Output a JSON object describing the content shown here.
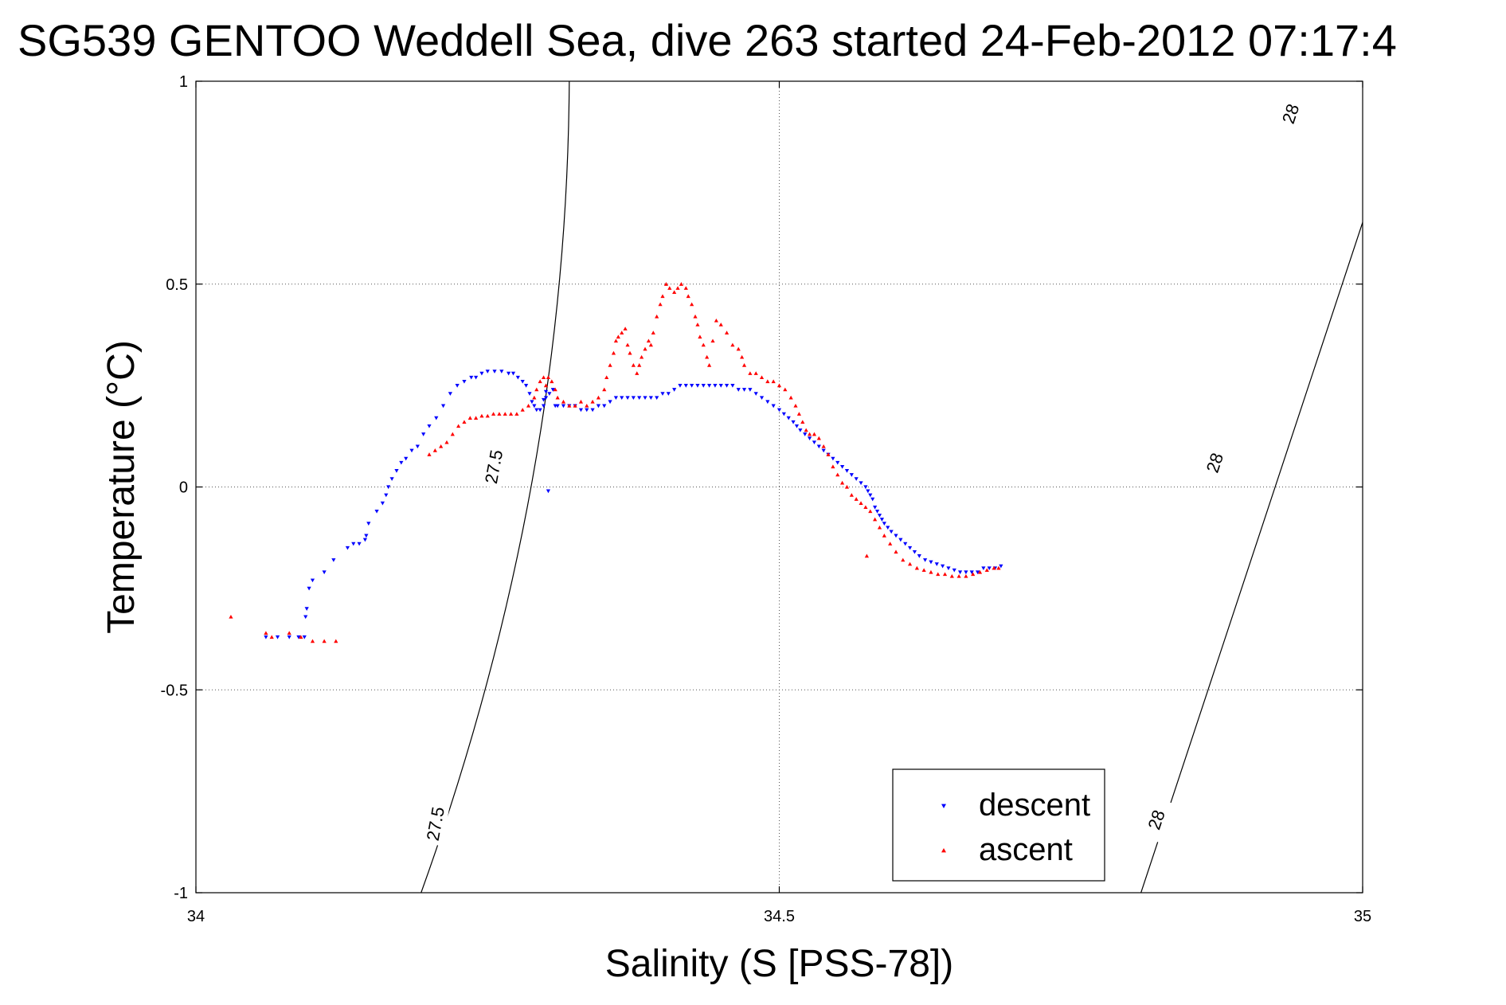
{
  "chart_data": {
    "type": "scatter",
    "title": "SG539 GENTOO Weddell Sea, dive 263 started 24-Feb-2012 07:17:4",
    "xlabel": "Salinity (S [PSS-78])",
    "ylabel": "Temperature (°C)",
    "xlim": [
      34,
      35
    ],
    "ylim": [
      -1,
      1
    ],
    "xticks": [
      34,
      34.5,
      35
    ],
    "xtick_labels": [
      "34",
      "34.5",
      "35"
    ],
    "yticks": [
      -1,
      -0.5,
      0,
      0.5,
      1
    ],
    "ytick_labels": [
      "-1",
      "-0.5",
      "0",
      "0.5",
      "1"
    ],
    "grid": true,
    "legend": "bottom-right",
    "contours": [
      {
        "level": "27.5",
        "points": [
          [
            34.193,
            -1.0
          ],
          [
            34.318,
            0.0
          ],
          [
            34.32,
            1.0
          ]
        ],
        "labels": [
          {
            "text": "27.5",
            "s": 34.205,
            "t": -0.83
          },
          {
            "text": "27.5",
            "s": 34.255,
            "t": 0.05
          }
        ]
      },
      {
        "level": "28",
        "points": [
          [
            34.81,
            -1.0
          ],
          [
            34.925,
            0.0
          ],
          [
            35.04,
            1.0
          ]
        ],
        "labels": [
          {
            "text": "28",
            "s": 34.823,
            "t": -0.82
          },
          {
            "text": "28",
            "s": 34.873,
            "t": 0.06
          },
          {
            "text": "28",
            "s": 34.938,
            "t": 0.92
          }
        ]
      }
    ],
    "series": [
      {
        "name": "descent",
        "color": "#0000ff",
        "marker": "triangle-down",
        "points": [
          [
            34.06,
            -0.37
          ],
          [
            34.07,
            -0.37
          ],
          [
            34.08,
            -0.37
          ],
          [
            34.088,
            -0.37
          ],
          [
            34.093,
            -0.37
          ],
          [
            34.094,
            -0.32
          ],
          [
            34.095,
            -0.3
          ],
          [
            34.097,
            -0.25
          ],
          [
            34.1,
            -0.23
          ],
          [
            34.11,
            -0.21
          ],
          [
            34.118,
            -0.18
          ],
          [
            34.13,
            -0.15
          ],
          [
            34.135,
            -0.14
          ],
          [
            34.14,
            -0.14
          ],
          [
            34.145,
            -0.13
          ],
          [
            34.146,
            -0.12
          ],
          [
            34.148,
            -0.09
          ],
          [
            34.155,
            -0.06
          ],
          [
            34.16,
            -0.04
          ],
          [
            34.163,
            -0.02
          ],
          [
            34.165,
            0.0
          ],
          [
            34.168,
            0.02
          ],
          [
            34.172,
            0.04
          ],
          [
            34.176,
            0.06
          ],
          [
            34.18,
            0.07
          ],
          [
            34.185,
            0.09
          ],
          [
            34.19,
            0.1
          ],
          [
            34.195,
            0.13
          ],
          [
            34.2,
            0.15
          ],
          [
            34.206,
            0.17
          ],
          [
            34.212,
            0.2
          ],
          [
            34.218,
            0.23
          ],
          [
            34.224,
            0.25
          ],
          [
            34.23,
            0.26
          ],
          [
            34.236,
            0.27
          ],
          [
            34.24,
            0.27
          ],
          [
            34.245,
            0.28
          ],
          [
            34.25,
            0.285
          ],
          [
            34.256,
            0.285
          ],
          [
            34.262,
            0.285
          ],
          [
            34.268,
            0.28
          ],
          [
            34.272,
            0.28
          ],
          [
            34.276,
            0.27
          ],
          [
            34.28,
            0.26
          ],
          [
            34.283,
            0.25
          ],
          [
            34.286,
            0.23
          ],
          [
            34.288,
            0.21
          ],
          [
            34.29,
            0.2
          ],
          [
            34.292,
            0.19
          ],
          [
            34.295,
            0.19
          ],
          [
            34.298,
            0.2
          ],
          [
            34.3,
            0.22
          ],
          [
            34.303,
            0.23
          ],
          [
            34.306,
            0.24
          ],
          [
            34.298,
            0.215
          ],
          [
            34.3,
            0.235
          ],
          [
            34.308,
            0.2
          ],
          [
            34.31,
            0.2
          ],
          [
            34.315,
            0.2
          ],
          [
            34.32,
            0.2
          ],
          [
            34.325,
            0.2
          ],
          [
            34.33,
            0.19
          ],
          [
            34.335,
            0.19
          ],
          [
            34.34,
            0.19
          ],
          [
            34.345,
            0.2
          ],
          [
            34.35,
            0.2
          ],
          [
            34.355,
            0.21
          ],
          [
            34.36,
            0.22
          ],
          [
            34.365,
            0.22
          ],
          [
            34.37,
            0.22
          ],
          [
            34.375,
            0.22
          ],
          [
            34.38,
            0.22
          ],
          [
            34.385,
            0.22
          ],
          [
            34.39,
            0.22
          ],
          [
            34.395,
            0.22
          ],
          [
            34.4,
            0.23
          ],
          [
            34.405,
            0.23
          ],
          [
            34.41,
            0.24
          ],
          [
            34.415,
            0.25
          ],
          [
            34.42,
            0.25
          ],
          [
            34.425,
            0.25
          ],
          [
            34.43,
            0.25
          ],
          [
            34.435,
            0.25
          ],
          [
            34.44,
            0.25
          ],
          [
            34.445,
            0.25
          ],
          [
            34.45,
            0.25
          ],
          [
            34.455,
            0.25
          ],
          [
            34.46,
            0.25
          ],
          [
            34.465,
            0.24
          ],
          [
            34.47,
            0.24
          ],
          [
            34.475,
            0.24
          ],
          [
            34.48,
            0.23
          ],
          [
            34.485,
            0.22
          ],
          [
            34.49,
            0.21
          ],
          [
            34.495,
            0.2
          ],
          [
            34.5,
            0.19
          ],
          [
            34.504,
            0.18
          ],
          [
            34.508,
            0.17
          ],
          [
            34.512,
            0.16
          ],
          [
            34.515,
            0.15
          ],
          [
            34.518,
            0.14
          ],
          [
            34.522,
            0.13
          ],
          [
            34.526,
            0.12
          ],
          [
            34.53,
            0.11
          ],
          [
            34.534,
            0.1
          ],
          [
            34.538,
            0.09
          ],
          [
            34.542,
            0.08
          ],
          [
            34.546,
            0.07
          ],
          [
            34.55,
            0.06
          ],
          [
            34.554,
            0.05
          ],
          [
            34.558,
            0.04
          ],
          [
            34.562,
            0.03
          ],
          [
            34.566,
            0.02
          ],
          [
            34.57,
            0.01
          ],
          [
            34.574,
            0.0
          ],
          [
            34.576,
            -0.01
          ],
          [
            34.578,
            -0.02
          ],
          [
            34.58,
            -0.03
          ],
          [
            34.582,
            -0.05
          ],
          [
            34.584,
            -0.06
          ],
          [
            34.586,
            -0.07
          ],
          [
            34.588,
            -0.08
          ],
          [
            34.59,
            -0.09
          ],
          [
            34.593,
            -0.1
          ],
          [
            34.596,
            -0.11
          ],
          [
            34.6,
            -0.12
          ],
          [
            34.604,
            -0.13
          ],
          [
            34.608,
            -0.14
          ],
          [
            34.612,
            -0.15
          ],
          [
            34.616,
            -0.16
          ],
          [
            34.62,
            -0.17
          ],
          [
            34.625,
            -0.18
          ],
          [
            34.63,
            -0.185
          ],
          [
            34.635,
            -0.19
          ],
          [
            34.64,
            -0.195
          ],
          [
            34.645,
            -0.2
          ],
          [
            34.65,
            -0.205
          ],
          [
            34.655,
            -0.21
          ],
          [
            34.66,
            -0.21
          ],
          [
            34.665,
            -0.21
          ],
          [
            34.67,
            -0.21
          ],
          [
            34.675,
            -0.2
          ],
          [
            34.68,
            -0.2
          ],
          [
            34.685,
            -0.2
          ],
          [
            34.69,
            -0.195
          ],
          [
            34.302,
            -0.01
          ]
        ]
      },
      {
        "name": "ascent",
        "color": "#ff0000",
        "marker": "triangle-up",
        "points": [
          [
            34.03,
            -0.32
          ],
          [
            34.06,
            -0.36
          ],
          [
            34.065,
            -0.37
          ],
          [
            34.08,
            -0.36
          ],
          [
            34.09,
            -0.37
          ],
          [
            34.1,
            -0.38
          ],
          [
            34.11,
            -0.38
          ],
          [
            34.12,
            -0.38
          ],
          [
            34.2,
            0.08
          ],
          [
            34.205,
            0.09
          ],
          [
            34.21,
            0.1
          ],
          [
            34.215,
            0.11
          ],
          [
            34.22,
            0.13
          ],
          [
            34.225,
            0.15
          ],
          [
            34.23,
            0.16
          ],
          [
            34.235,
            0.17
          ],
          [
            34.24,
            0.17
          ],
          [
            34.245,
            0.175
          ],
          [
            34.25,
            0.175
          ],
          [
            34.255,
            0.18
          ],
          [
            34.26,
            0.18
          ],
          [
            34.265,
            0.18
          ],
          [
            34.27,
            0.18
          ],
          [
            34.275,
            0.18
          ],
          [
            34.28,
            0.19
          ],
          [
            34.285,
            0.2
          ],
          [
            34.29,
            0.22
          ],
          [
            34.292,
            0.24
          ],
          [
            34.295,
            0.26
          ],
          [
            34.298,
            0.27
          ],
          [
            34.3,
            0.25
          ],
          [
            34.302,
            0.27
          ],
          [
            34.305,
            0.26
          ],
          [
            34.308,
            0.24
          ],
          [
            34.31,
            0.22
          ],
          [
            34.315,
            0.21
          ],
          [
            34.32,
            0.2
          ],
          [
            34.325,
            0.2
          ],
          [
            34.33,
            0.21
          ],
          [
            34.335,
            0.2
          ],
          [
            34.34,
            0.21
          ],
          [
            34.345,
            0.22
          ],
          [
            34.35,
            0.24
          ],
          [
            34.352,
            0.27
          ],
          [
            34.355,
            0.3
          ],
          [
            34.358,
            0.33
          ],
          [
            34.36,
            0.36
          ],
          [
            34.362,
            0.37
          ],
          [
            34.365,
            0.38
          ],
          [
            34.368,
            0.39
          ],
          [
            34.37,
            0.35
          ],
          [
            34.372,
            0.33
          ],
          [
            34.375,
            0.3
          ],
          [
            34.378,
            0.28
          ],
          [
            34.38,
            0.3
          ],
          [
            34.382,
            0.32
          ],
          [
            34.385,
            0.34
          ],
          [
            34.388,
            0.36
          ],
          [
            34.39,
            0.35
          ],
          [
            34.392,
            0.38
          ],
          [
            34.395,
            0.42
          ],
          [
            34.398,
            0.45
          ],
          [
            34.4,
            0.47
          ],
          [
            34.403,
            0.5
          ],
          [
            34.406,
            0.49
          ],
          [
            34.41,
            0.48
          ],
          [
            34.413,
            0.49
          ],
          [
            34.416,
            0.5
          ],
          [
            34.42,
            0.49
          ],
          [
            34.422,
            0.47
          ],
          [
            34.425,
            0.45
          ],
          [
            34.428,
            0.42
          ],
          [
            34.43,
            0.4
          ],
          [
            34.432,
            0.37
          ],
          [
            34.435,
            0.35
          ],
          [
            34.438,
            0.32
          ],
          [
            34.44,
            0.3
          ],
          [
            34.443,
            0.36
          ],
          [
            34.446,
            0.41
          ],
          [
            34.45,
            0.4
          ],
          [
            34.455,
            0.38
          ],
          [
            34.46,
            0.35
          ],
          [
            34.465,
            0.34
          ],
          [
            34.468,
            0.32
          ],
          [
            34.47,
            0.3
          ],
          [
            34.475,
            0.28
          ],
          [
            34.48,
            0.28
          ],
          [
            34.485,
            0.27
          ],
          [
            34.49,
            0.26
          ],
          [
            34.495,
            0.26
          ],
          [
            34.5,
            0.25
          ],
          [
            34.505,
            0.24
          ],
          [
            34.51,
            0.22
          ],
          [
            34.514,
            0.2
          ],
          [
            34.517,
            0.18
          ],
          [
            34.52,
            0.16
          ],
          [
            34.523,
            0.14
          ],
          [
            34.526,
            0.13
          ],
          [
            34.53,
            0.13
          ],
          [
            34.534,
            0.12
          ],
          [
            34.538,
            0.1
          ],
          [
            34.542,
            0.08
          ],
          [
            34.546,
            0.05
          ],
          [
            34.55,
            0.03
          ],
          [
            34.554,
            0.01
          ],
          [
            34.558,
            0.0
          ],
          [
            34.562,
            -0.02
          ],
          [
            34.566,
            -0.03
          ],
          [
            34.57,
            -0.04
          ],
          [
            34.574,
            -0.05
          ],
          [
            34.578,
            -0.06
          ],
          [
            34.582,
            -0.08
          ],
          [
            34.586,
            -0.1
          ],
          [
            34.59,
            -0.12
          ],
          [
            34.595,
            -0.14
          ],
          [
            34.6,
            -0.16
          ],
          [
            34.606,
            -0.18
          ],
          [
            34.612,
            -0.19
          ],
          [
            34.618,
            -0.2
          ],
          [
            34.624,
            -0.205
          ],
          [
            34.63,
            -0.21
          ],
          [
            34.636,
            -0.215
          ],
          [
            34.642,
            -0.215
          ],
          [
            34.648,
            -0.22
          ],
          [
            34.654,
            -0.22
          ],
          [
            34.66,
            -0.22
          ],
          [
            34.666,
            -0.215
          ],
          [
            34.672,
            -0.21
          ],
          [
            34.678,
            -0.205
          ],
          [
            34.684,
            -0.2
          ],
          [
            34.688,
            -0.2
          ],
          [
            34.575,
            -0.17
          ]
        ]
      }
    ]
  }
}
